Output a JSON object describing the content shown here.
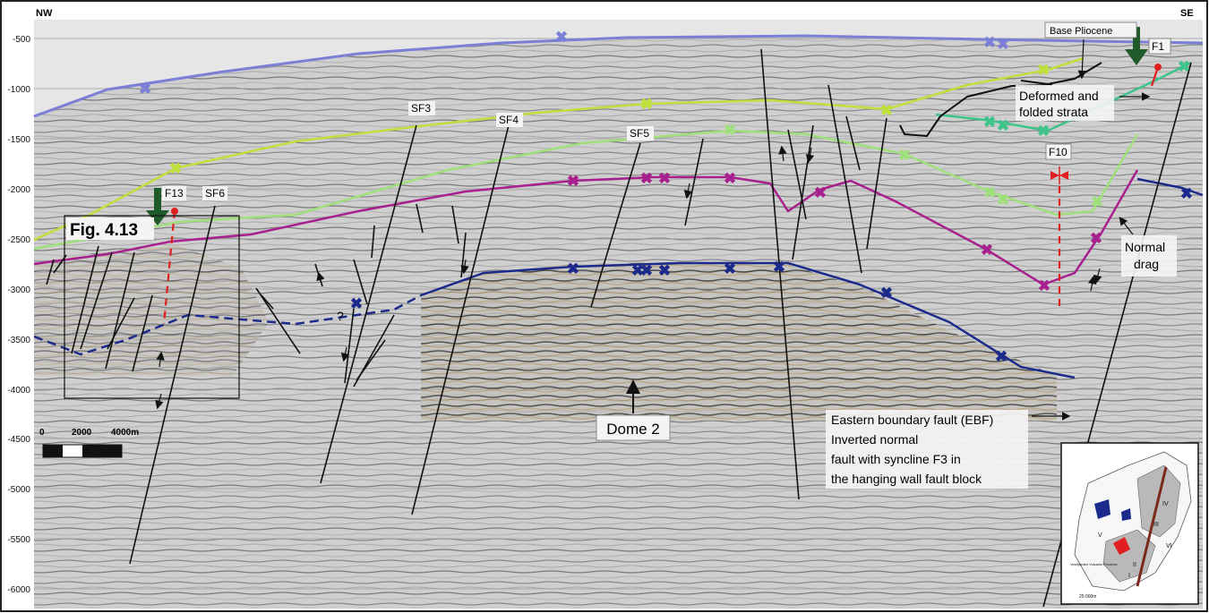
{
  "orientation": {
    "left": "NW",
    "right": "SE"
  },
  "depth_axis": {
    "ticks": [
      "-500",
      "-1000",
      "-1500",
      "-2000",
      "-2500",
      "-3000",
      "-3500",
      "-4000",
      "-4500",
      "-5000",
      "-5500",
      "-6000"
    ]
  },
  "scale_bar": {
    "labels": [
      "0",
      "2000",
      "4000m"
    ]
  },
  "fault_labels": {
    "f13": "F13",
    "sf6": "SF6",
    "sf3": "SF3",
    "sf4": "SF4",
    "sf5": "SF5",
    "f10": "F10",
    "f1": "F1"
  },
  "annotations": {
    "fig_ref": "Fig. 4.13",
    "base_pliocene": "Base Pliocene",
    "deformed_1": "Deformed and",
    "deformed_2": "folded strata",
    "normal_drag_1": "Normal",
    "normal_drag_2": "drag",
    "dome": "Dome 2",
    "question": "?",
    "ebf_1": "Eastern boundary fault (EBF)",
    "ebf_2": "Inverted normal",
    "ebf_3": "fault with syncline F3 in",
    "ebf_4": "the hanging wall fault block"
  },
  "inset_map": {
    "labels": [
      "IV",
      "V",
      "III",
      "VI",
      "II",
      "I",
      "Vestfjorden Volcanic Province"
    ],
    "scale": "25 000m"
  },
  "colors": {
    "seafloor": "#7b7fd6",
    "horizon_yellow_green": "#bfe03a",
    "horizon_light_green": "#9fe07a",
    "horizon_teal": "#3cc48a",
    "horizon_magenta": "#a8208e",
    "horizon_blue": "#1c2a8c",
    "fault": "#111111",
    "marker_red": "#e02020",
    "arrow_green": "#1f5a2a"
  }
}
